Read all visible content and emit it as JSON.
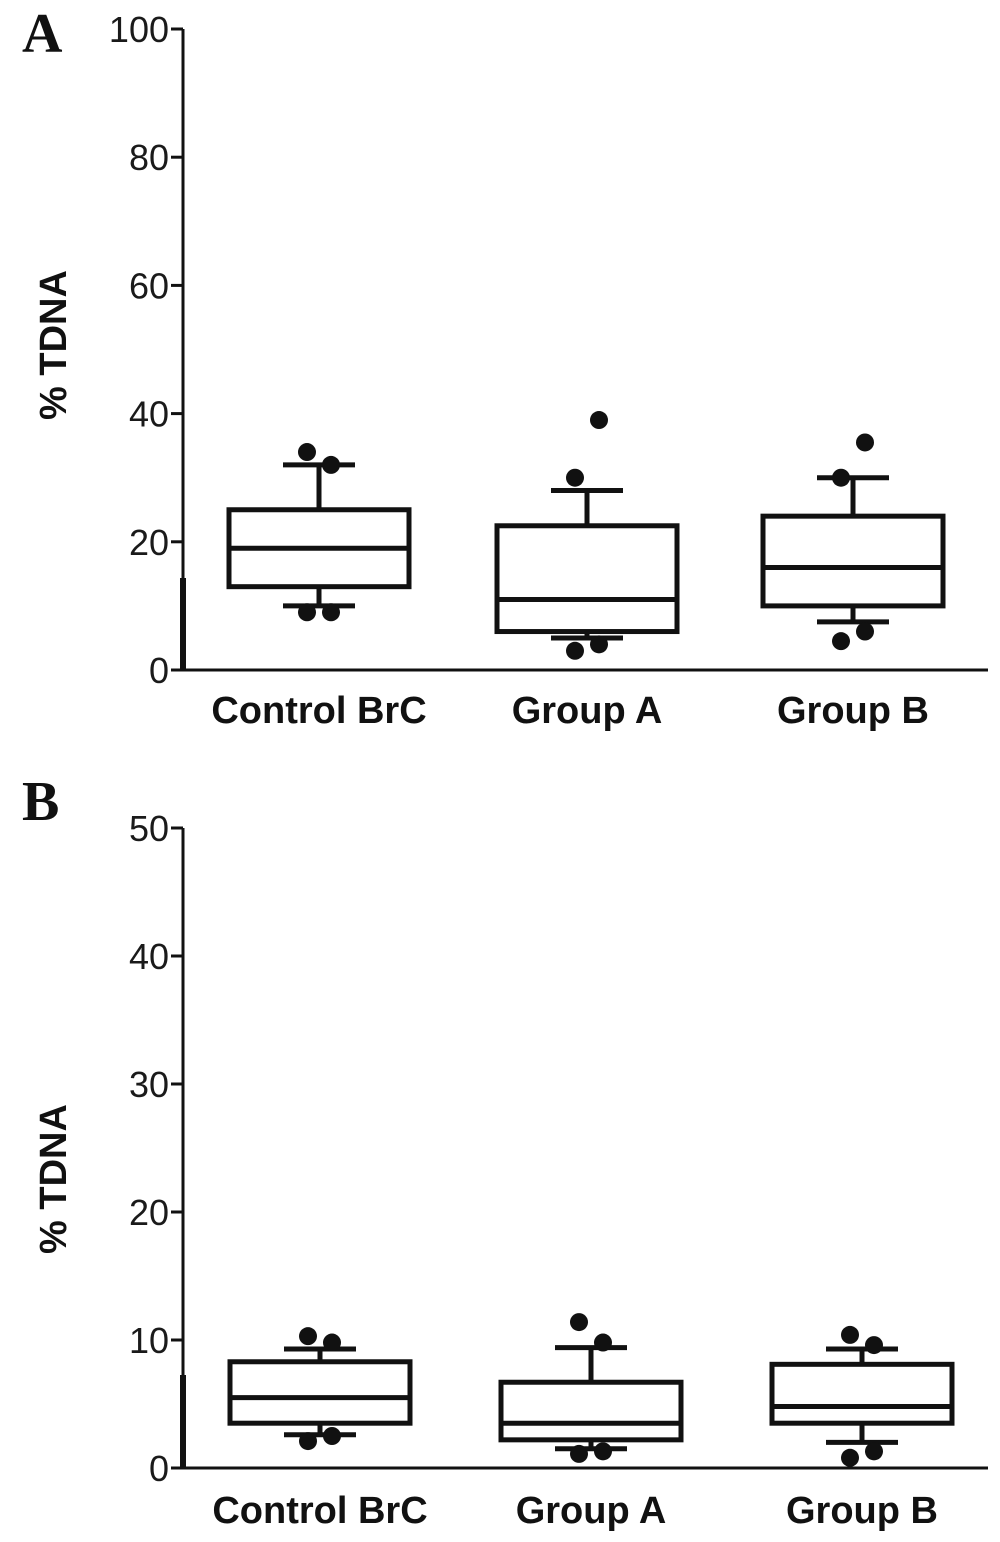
{
  "chart_data": [
    {
      "type": "box",
      "panel_label": "A",
      "ylabel": "% TDNA",
      "xlabel": "",
      "ylim": [
        0,
        100
      ],
      "yticks": [
        0,
        20,
        40,
        60,
        80,
        100
      ],
      "categories": [
        "Control BrC",
        "Group A",
        "Group B"
      ],
      "boxes": [
        {
          "category": "Control BrC",
          "whisker_low": 10,
          "q1": 13,
          "median": 19,
          "q3": 25,
          "whisker_high": 32,
          "outliers": [
            9,
            9,
            34,
            32
          ]
        },
        {
          "category": "Group A",
          "whisker_low": 5,
          "q1": 6,
          "median": 11,
          "q3": 22.5,
          "whisker_high": 28,
          "outliers": [
            3,
            4,
            30,
            39
          ]
        },
        {
          "category": "Group B",
          "whisker_low": 7.5,
          "q1": 10,
          "median": 16,
          "q3": 24,
          "whisker_high": 30,
          "outliers": [
            4.5,
            6,
            30,
            35.5
          ]
        }
      ]
    },
    {
      "type": "box",
      "panel_label": "B",
      "ylabel": "% TDNA",
      "xlabel": "",
      "ylim": [
        0,
        50
      ],
      "yticks": [
        0,
        10,
        20,
        30,
        40,
        50
      ],
      "categories": [
        "Control BrC",
        "Group A",
        "Group B"
      ],
      "boxes": [
        {
          "category": "Control BrC",
          "whisker_low": 2.6,
          "q1": 3.5,
          "median": 5.5,
          "q3": 8.3,
          "whisker_high": 9.3,
          "outliers": [
            2.1,
            2.5,
            10.3,
            9.8
          ]
        },
        {
          "category": "Group A",
          "whisker_low": 1.5,
          "q1": 2.2,
          "median": 3.5,
          "q3": 6.7,
          "whisker_high": 9.4,
          "outliers": [
            1.1,
            1.3,
            11.4,
            9.8
          ]
        },
        {
          "category": "Group B",
          "whisker_low": 2.0,
          "q1": 3.5,
          "median": 4.8,
          "q3": 8.1,
          "whisker_high": 9.3,
          "outliers": [
            0.8,
            1.3,
            10.4,
            9.6
          ]
        }
      ]
    }
  ]
}
